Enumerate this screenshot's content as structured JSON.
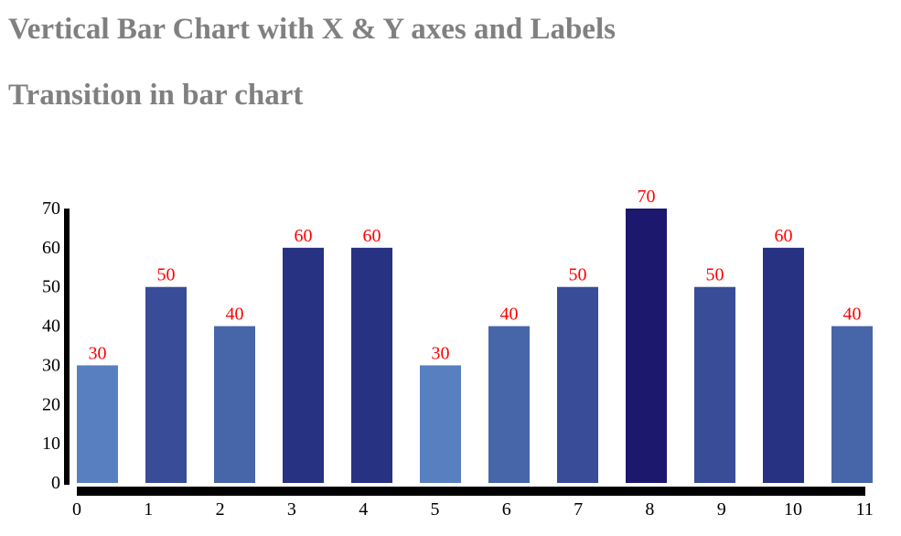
{
  "title": "Vertical Bar Chart with X & Y axes and Labels",
  "subtitle": "Transition in bar chart",
  "chart_data": {
    "type": "bar",
    "categories": [
      "0",
      "1",
      "2",
      "3",
      "4",
      "5",
      "6",
      "7",
      "8",
      "9",
      "10",
      "11"
    ],
    "values": [
      30,
      50,
      40,
      60,
      60,
      30,
      40,
      50,
      70,
      50,
      60,
      40
    ],
    "x_ticks": [
      "0",
      "1",
      "2",
      "3",
      "4",
      "5",
      "6",
      "7",
      "8",
      "9",
      "10",
      "11"
    ],
    "y_ticks": [
      "0",
      "10",
      "20",
      "30",
      "40",
      "50",
      "60",
      "70"
    ],
    "ylim": [
      0,
      70
    ],
    "xlabel": "",
    "ylabel": "",
    "grid": false,
    "data_labels": true,
    "colors": {
      "value_30": "#5880c0",
      "value_40": "#4766a9",
      "value_50": "#384c98",
      "value_60": "#283283",
      "value_70": "#1b186e",
      "data_label": "#ff0000",
      "axis": "#000000",
      "heading": "#808080"
    }
  }
}
